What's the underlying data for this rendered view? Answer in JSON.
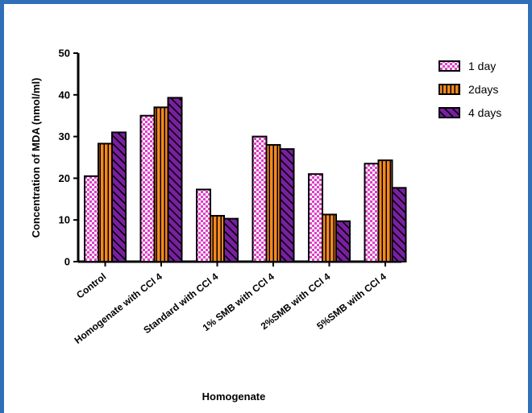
{
  "colors": {
    "frame": "#2f6fb8",
    "pink": "#e040c8",
    "orange": "#f5881f",
    "purple": "#7a1fa2"
  },
  "chart_data": {
    "type": "bar",
    "title": "",
    "xlabel": "Homogenate",
    "ylabel": "Concentration of MDA (nmol/ml)",
    "ylim": [
      0,
      50
    ],
    "yticks": [
      "0",
      "10",
      "20",
      "30",
      "40",
      "50"
    ],
    "categories": [
      "Control",
      "Homogenate with CCl 4",
      "Standard with CCl 4",
      "1% SMB  with CCl 4",
      "2%SMB  with CCl 4",
      "5%SMB with CCl 4"
    ],
    "series": [
      {
        "name": "1 day",
        "pattern": "checker",
        "values": [
          20.5,
          35.0,
          17.3,
          30.0,
          21.0,
          23.5
        ]
      },
      {
        "name": "2days",
        "pattern": "vertical",
        "values": [
          28.3,
          37.0,
          11.0,
          28.0,
          11.3,
          24.3
        ]
      },
      {
        "name": "4 days",
        "pattern": "diagonal",
        "values": [
          31.0,
          39.3,
          10.3,
          27.0,
          9.7,
          17.7
        ]
      }
    ],
    "legend_position": "top-right",
    "grid": false
  }
}
